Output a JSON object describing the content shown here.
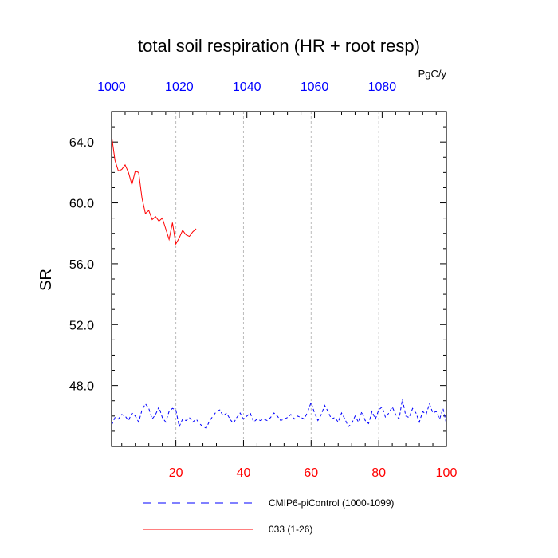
{
  "chart_data": {
    "type": "line",
    "title": "total soil respiration (HR + root resp)",
    "units": "PgC/y",
    "ylabel": "SR",
    "ylim": [
      44.0,
      66.0
    ],
    "yticks": [
      "48.0",
      "52.0",
      "56.0",
      "60.0",
      "64.0"
    ],
    "ytick_values": [
      48,
      52,
      56,
      60,
      64
    ],
    "x_bottom": {
      "lim": [
        1,
        100
      ],
      "ticks": [
        "20",
        "40",
        "60",
        "80",
        "100"
      ],
      "tick_values": [
        20,
        40,
        60,
        80,
        100
      ],
      "color": "#ff0000"
    },
    "x_top": {
      "lim": [
        1000,
        1099
      ],
      "ticks": [
        "1000",
        "1020",
        "1040",
        "1060",
        "1080"
      ],
      "tick_values": [
        1000,
        1020,
        1040,
        1060,
        1080
      ],
      "color": "#0000ff"
    },
    "grid": "vertical-dashed",
    "legend_position": "bottom",
    "series": [
      {
        "name": "CMIP6-piControl (1000-1099)",
        "color": "#0000ff",
        "dash": "dashed",
        "axis": "top",
        "x_start": 1000,
        "values": [
          45.4,
          45.9,
          45.8,
          46.1,
          46.0,
          45.7,
          46.2,
          46.0,
          45.6,
          46.4,
          46.8,
          46.5,
          45.8,
          46.1,
          46.6,
          45.9,
          45.6,
          46.3,
          46.5,
          46.4,
          45.3,
          45.8,
          45.7,
          45.9,
          45.6,
          45.8,
          45.5,
          45.3,
          45.2,
          45.7,
          46.0,
          46.3,
          46.4,
          46.0,
          46.2,
          45.8,
          45.5,
          45.9,
          46.2,
          45.8,
          46.0,
          46.2,
          45.6,
          45.8,
          45.7,
          45.8,
          45.7,
          45.9,
          46.2,
          46.0,
          45.7,
          45.8,
          45.9,
          46.1,
          45.8,
          46.0,
          45.9,
          45.8,
          46.3,
          46.9,
          46.2,
          45.7,
          46.1,
          46.7,
          46.3,
          45.8,
          45.9,
          45.6,
          46.2,
          45.8,
          45.3,
          45.5,
          46.0,
          45.6,
          46.3,
          45.7,
          45.5,
          46.3,
          45.8,
          46.4,
          46.6,
          45.9,
          46.2,
          46.6,
          46.1,
          45.8,
          47.1,
          46.0,
          45.9,
          46.5,
          46.2,
          45.6,
          46.3,
          46.1,
          46.8,
          46.2,
          46.3,
          45.8,
          46.5,
          45.5
        ]
      },
      {
        "name": "033 (1-26)",
        "color": "#ff0000",
        "dash": "solid",
        "axis": "bottom",
        "x_start": 1,
        "values": [
          64.4,
          62.8,
          62.1,
          62.2,
          62.5,
          62.0,
          61.2,
          62.1,
          62.0,
          60.3,
          59.3,
          59.5,
          58.9,
          59.1,
          58.8,
          59.0,
          58.3,
          57.6,
          58.7,
          57.3,
          57.7,
          58.2,
          57.9,
          57.8,
          58.1,
          58.3
        ]
      }
    ]
  }
}
